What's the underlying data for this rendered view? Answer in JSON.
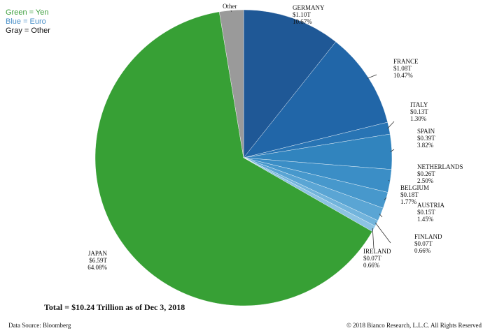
{
  "legend": [
    {
      "text": "Green = Yen",
      "color": "#3a9d3a"
    },
    {
      "text": "Blue = Euro",
      "color": "#4a90c8"
    },
    {
      "text": "Gray = Other",
      "color": "#111111"
    }
  ],
  "total_text": "Total = $10.24 Trillion as of Dec 3, 2018",
  "source_text": "Data Source: Bloomberg",
  "copyright_text": "© 2018 Bianco Research, L.L.C. All Rights Reserved",
  "chart_data": {
    "type": "pie",
    "title": "",
    "total": "Total = $10.24 Trillion as of Dec 3, 2018",
    "slices": [
      {
        "name": "GERMANY",
        "amount": "$1.10T",
        "percent_label": "10.67%",
        "percent": 10.67,
        "color": "#1f5896"
      },
      {
        "name": "FRANCE",
        "amount": "$1.08T",
        "percent_label": "10.47%",
        "percent": 10.47,
        "color": "#2166a8"
      },
      {
        "name": "ITALY",
        "amount": "$0.13T",
        "percent_label": "1.30%",
        "percent": 1.3,
        "color": "#2874b4"
      },
      {
        "name": "SPAIN",
        "amount": "$0.39T",
        "percent_label": "3.82%",
        "percent": 3.82,
        "color": "#3184be"
      },
      {
        "name": "NETHERLANDS",
        "amount": "$0.26T",
        "percent_label": "2.50%",
        "percent": 2.5,
        "color": "#3b8ec6"
      },
      {
        "name": "BELGIUM",
        "amount": "$0.18T",
        "percent_label": "1.77%",
        "percent": 1.77,
        "color": "#4798cc"
      },
      {
        "name": "AUSTRIA",
        "amount": "$0.15T",
        "percent_label": "1.45%",
        "percent": 1.45,
        "color": "#5aa5d4"
      },
      {
        "name": "FINLAND",
        "amount": "$0.07T",
        "percent_label": "0.66%",
        "percent": 0.66,
        "color": "#72b4dc"
      },
      {
        "name": "IRELAND",
        "amount": "$0.07T",
        "percent_label": "0.66%",
        "percent": 0.66,
        "color": "#8cc3e3"
      },
      {
        "name": "JAPAN",
        "amount": "$6.59T",
        "percent_label": "64.08%",
        "percent": 64.08,
        "color": "#37a035"
      },
      {
        "name": "Other",
        "amount": "",
        "percent_label": "",
        "percent": 2.62,
        "color": "#9a9a9a"
      }
    ]
  }
}
